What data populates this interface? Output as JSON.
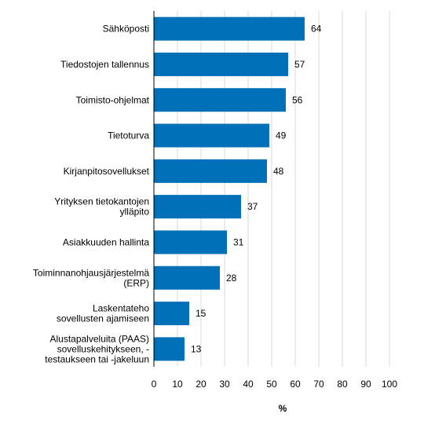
{
  "chart_data": {
    "type": "bar",
    "orientation": "horizontal",
    "categories": [
      [
        "Sähköposti"
      ],
      [
        "Tiedostojen tallennus"
      ],
      [
        "Toimisto-ohjelmat"
      ],
      [
        "Tietoturva"
      ],
      [
        "Kirjanpitosovellukset"
      ],
      [
        "Yrityksen tietokantojen",
        "ylläpito"
      ],
      [
        "Asiakkuuden hallinta"
      ],
      [
        "Toiminnanohjausjärjestelmä",
        "(ERP)"
      ],
      [
        "Laskentateho",
        "sovellusten ajamiseen"
      ],
      [
        "Alustapalveluita (PAAS)",
        "sovelluskehitykseen, -",
        "testaukseen tai -jakeluun"
      ]
    ],
    "values": [
      64,
      57,
      56,
      49,
      48,
      37,
      31,
      28,
      15,
      13
    ],
    "xlabel": "%",
    "xlim": [
      0,
      100
    ],
    "xticks": [
      0,
      10,
      20,
      30,
      40,
      50,
      60,
      70,
      80,
      90,
      100
    ],
    "grid": "vertical",
    "bar_color": "#0071b9",
    "gridline_color": "#d9d9d9"
  }
}
